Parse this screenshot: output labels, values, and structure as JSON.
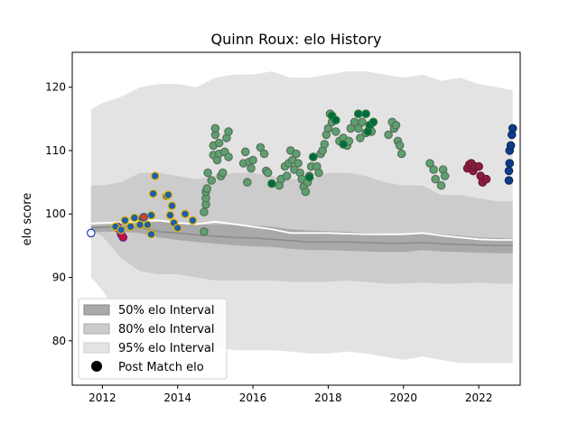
{
  "chart_data": {
    "type": "scatter",
    "title": "Quinn Roux: elo History",
    "xlabel": "",
    "ylabel": "elo score",
    "xlim": [
      2011.2,
      2023.1
    ],
    "ylim": [
      73.0,
      125.5
    ],
    "xticks": [
      2012,
      2014,
      2016,
      2018,
      2020,
      2022
    ],
    "yticks": [
      80,
      90,
      100,
      110,
      120
    ],
    "legend": {
      "placement": "lower-left",
      "entries": [
        "50% elo Interval",
        "80% elo Interval",
        "95% elo Interval",
        "Post Match elo"
      ]
    },
    "colors": {
      "band95": "#e3e3e3",
      "band80": "#cccccc",
      "band50": "#a9a9a9",
      "median_line": "#8a8a8a",
      "mean_line": "#ffffff"
    },
    "bands": {
      "x": [
        2011.7,
        2012.0,
        2012.5,
        2013.0,
        2013.5,
        2014.0,
        2014.5,
        2015.0,
        2015.5,
        2016.0,
        2016.5,
        2017.0,
        2017.5,
        2018.0,
        2018.5,
        2019.0,
        2019.5,
        2020.0,
        2020.5,
        2021.0,
        2021.5,
        2022.0,
        2022.5,
        2022.9
      ],
      "p95_upper": [
        116.5,
        117.5,
        118.5,
        120.0,
        120.5,
        120.5,
        120.0,
        121.5,
        122.0,
        122.0,
        122.5,
        121.5,
        121.5,
        122.0,
        122.5,
        122.5,
        122.0,
        121.5,
        122.0,
        121.0,
        121.5,
        120.5,
        120.0,
        119.5
      ],
      "p80_upper": [
        104.5,
        104.5,
        105.0,
        106.5,
        106.5,
        106.0,
        105.5,
        106.0,
        106.5,
        106.5,
        106.0,
        105.5,
        105.5,
        106.5,
        106.5,
        106.0,
        105.0,
        104.5,
        104.5,
        103.0,
        103.0,
        102.5,
        102.0,
        102.0
      ],
      "p50_upper": [
        98.2,
        98.3,
        98.4,
        98.6,
        98.8,
        98.6,
        98.3,
        98.4,
        98.3,
        98.2,
        98.0,
        97.6,
        97.4,
        97.3,
        97.2,
        97.0,
        96.9,
        96.8,
        97.0,
        96.8,
        96.6,
        96.3,
        96.2,
        96.1
      ],
      "median": [
        97.8,
        97.9,
        97.9,
        97.9,
        97.2,
        97.0,
        96.7,
        96.5,
        96.3,
        96.2,
        96.0,
        95.8,
        95.6,
        95.6,
        95.6,
        95.5,
        95.4,
        95.4,
        95.5,
        95.3,
        95.2,
        95.1,
        95.0,
        95.0
      ],
      "p50_lower": [
        97.0,
        97.2,
        97.2,
        97.0,
        96.3,
        95.9,
        95.6,
        95.3,
        95.1,
        94.9,
        94.8,
        94.5,
        94.3,
        94.3,
        94.2,
        94.1,
        94.0,
        94.0,
        94.3,
        94.1,
        94.0,
        93.9,
        93.8,
        93.8
      ],
      "p80_lower": [
        97.5,
        96.5,
        93.0,
        91.0,
        90.5,
        90.5,
        90.0,
        89.5,
        89.5,
        89.5,
        89.5,
        89.3,
        89.3,
        89.3,
        89.5,
        89.3,
        89.0,
        89.0,
        89.2,
        89.0,
        89.0,
        89.2,
        89.0,
        89.0
      ],
      "p95_lower": [
        90.0,
        88.0,
        83.5,
        82.0,
        80.5,
        79.5,
        79.0,
        79.0,
        78.5,
        78.5,
        78.5,
        78.3,
        78.0,
        78.0,
        78.3,
        78.0,
        77.5,
        77.0,
        77.5,
        77.0,
        76.5,
        76.5,
        76.5,
        76.5
      ],
      "mean": [
        98.5,
        98.6,
        98.7,
        98.9,
        99.0,
        98.6,
        98.4,
        98.8,
        98.4,
        98.0,
        97.6,
        97.0,
        97.0,
        97.0,
        96.9,
        96.8,
        96.8,
        96.8,
        97.0,
        96.6,
        96.3,
        96.0,
        95.9,
        95.9
      ]
    },
    "series": [
      {
        "face": "#ffffff",
        "edge": "#1f3fbf",
        "points": [
          [
            2011.7,
            97.0
          ]
        ]
      },
      {
        "face": "#c8102e",
        "edge": "#6a1b9a",
        "points": [
          [
            2012.4,
            98.0
          ],
          [
            2012.45,
            97.6
          ],
          [
            2012.5,
            96.8
          ],
          [
            2012.55,
            96.3
          ]
        ]
      },
      {
        "face": "#1f5fa8",
        "edge": "#e6b800",
        "points": [
          [
            2012.6,
            99.0
          ],
          [
            2012.75,
            98.0
          ],
          [
            2012.85,
            99.4
          ],
          [
            2013.05,
            99.3
          ],
          [
            2013.3,
            96.8
          ],
          [
            2013.3,
            99.8
          ],
          [
            2013.35,
            103.2
          ],
          [
            2013.4,
            106.0
          ],
          [
            2013.7,
            102.8
          ],
          [
            2013.75,
            103.0
          ],
          [
            2013.8,
            99.8
          ],
          [
            2013.85,
            101.3
          ],
          [
            2013.9,
            98.6
          ],
          [
            2014.0,
            97.8
          ],
          [
            2014.2,
            100.0
          ],
          [
            2014.4,
            99.0
          ],
          [
            2013.2,
            98.3
          ],
          [
            2013.0,
            98.3
          ],
          [
            2012.35,
            98.0
          ],
          [
            2012.5,
            97.5
          ]
        ]
      },
      {
        "face": "#d94020",
        "edge": "#1f5fa8",
        "points": [
          [
            2013.1,
            99.5
          ]
        ]
      },
      {
        "face": "#5fa070",
        "edge": "#55705a",
        "points": [
          [
            2014.7,
            97.2
          ],
          [
            2014.7,
            100.3
          ],
          [
            2014.75,
            101.5
          ],
          [
            2014.75,
            102.5
          ],
          [
            2014.75,
            103.5
          ],
          [
            2014.78,
            104.0
          ],
          [
            2014.8,
            106.5
          ],
          [
            2014.9,
            105.3
          ],
          [
            2014.95,
            109.3
          ],
          [
            2014.95,
            110.8
          ],
          [
            2015.0,
            112.5
          ],
          [
            2015.0,
            113.5
          ],
          [
            2015.05,
            108.5
          ],
          [
            2015.1,
            109.5
          ],
          [
            2015.1,
            111.2
          ],
          [
            2015.15,
            106.0
          ],
          [
            2015.2,
            106.5
          ],
          [
            2015.25,
            109.8
          ],
          [
            2015.3,
            112.0
          ],
          [
            2015.35,
            113.0
          ],
          [
            2015.35,
            109.0
          ],
          [
            2015.75,
            108.0
          ],
          [
            2015.8,
            109.8
          ],
          [
            2015.85,
            105.0
          ],
          [
            2015.9,
            108.2
          ],
          [
            2015.95,
            107.2
          ],
          [
            2016.0,
            108.5
          ],
          [
            2016.2,
            110.5
          ],
          [
            2016.3,
            109.5
          ],
          [
            2016.35,
            106.8
          ],
          [
            2016.4,
            106.5
          ],
          [
            2016.7,
            104.5
          ],
          [
            2016.75,
            105.5
          ],
          [
            2016.85,
            107.5
          ],
          [
            2016.9,
            106.0
          ],
          [
            2016.95,
            108.0
          ],
          [
            2017.0,
            110.0
          ],
          [
            2017.05,
            108.5
          ],
          [
            2017.1,
            107.0
          ],
          [
            2017.15,
            109.5
          ],
          [
            2017.2,
            108.0
          ],
          [
            2017.25,
            106.5
          ],
          [
            2017.3,
            105.5
          ],
          [
            2017.35,
            104.3
          ],
          [
            2017.4,
            103.5
          ],
          [
            2017.45,
            105.0
          ],
          [
            2017.5,
            106.0
          ],
          [
            2017.55,
            107.5
          ],
          [
            2017.6,
            109.0
          ],
          [
            2017.7,
            107.5
          ],
          [
            2017.75,
            106.5
          ],
          [
            2017.8,
            109.5
          ],
          [
            2017.85,
            110.0
          ],
          [
            2017.9,
            111.0
          ],
          [
            2017.95,
            112.5
          ],
          [
            2018.0,
            113.5
          ],
          [
            2018.05,
            115.8
          ],
          [
            2018.1,
            114.5
          ],
          [
            2018.2,
            113.0
          ],
          [
            2018.3,
            111.5
          ],
          [
            2018.4,
            112.0
          ],
          [
            2018.5,
            110.8
          ],
          [
            2018.55,
            111.5
          ],
          [
            2018.6,
            113.5
          ],
          [
            2018.7,
            114.5
          ],
          [
            2018.8,
            113.5
          ],
          [
            2018.85,
            112.0
          ],
          [
            2018.9,
            114.5
          ],
          [
            2019.0,
            112.8
          ],
          [
            2019.1,
            113.5
          ],
          [
            2019.15,
            113.0
          ],
          [
            2019.6,
            112.5
          ],
          [
            2019.7,
            114.5
          ],
          [
            2019.75,
            113.5
          ],
          [
            2019.8,
            114.0
          ],
          [
            2019.85,
            111.5
          ],
          [
            2019.9,
            110.8
          ],
          [
            2019.95,
            109.5
          ],
          [
            2020.7,
            108.0
          ],
          [
            2020.8,
            107.0
          ],
          [
            2020.85,
            105.5
          ],
          [
            2021.0,
            104.5
          ],
          [
            2021.05,
            107.0
          ],
          [
            2021.1,
            106.0
          ]
        ]
      },
      {
        "face": "#006b45",
        "edge": "#2e7d32",
        "points": [
          [
            2016.5,
            104.8
          ],
          [
            2017.5,
            105.8
          ],
          [
            2017.6,
            109.0
          ],
          [
            2018.1,
            115.5
          ],
          [
            2018.2,
            114.8
          ],
          [
            2018.4,
            111.0
          ],
          [
            2018.8,
            115.8
          ],
          [
            2019.0,
            115.8
          ],
          [
            2019.05,
            113.0
          ],
          [
            2019.1,
            114.0
          ],
          [
            2019.2,
            114.5
          ]
        ]
      },
      {
        "face": "#8b1e3f",
        "edge": "#6a1530",
        "points": [
          [
            2021.7,
            107.2
          ],
          [
            2021.75,
            107.8
          ],
          [
            2021.8,
            108.0
          ],
          [
            2021.85,
            106.8
          ],
          [
            2021.9,
            107.5
          ],
          [
            2022.0,
            107.5
          ],
          [
            2022.05,
            106.0
          ],
          [
            2022.1,
            105.0
          ],
          [
            2022.2,
            105.5
          ]
        ]
      },
      {
        "face": "#0d3b8c",
        "edge": "#0a2a5a",
        "points": [
          [
            2022.8,
            105.3
          ],
          [
            2022.8,
            106.8
          ],
          [
            2022.82,
            108.0
          ],
          [
            2022.82,
            110.0
          ],
          [
            2022.85,
            110.8
          ],
          [
            2022.88,
            112.5
          ],
          [
            2022.9,
            113.5
          ]
        ]
      }
    ]
  }
}
